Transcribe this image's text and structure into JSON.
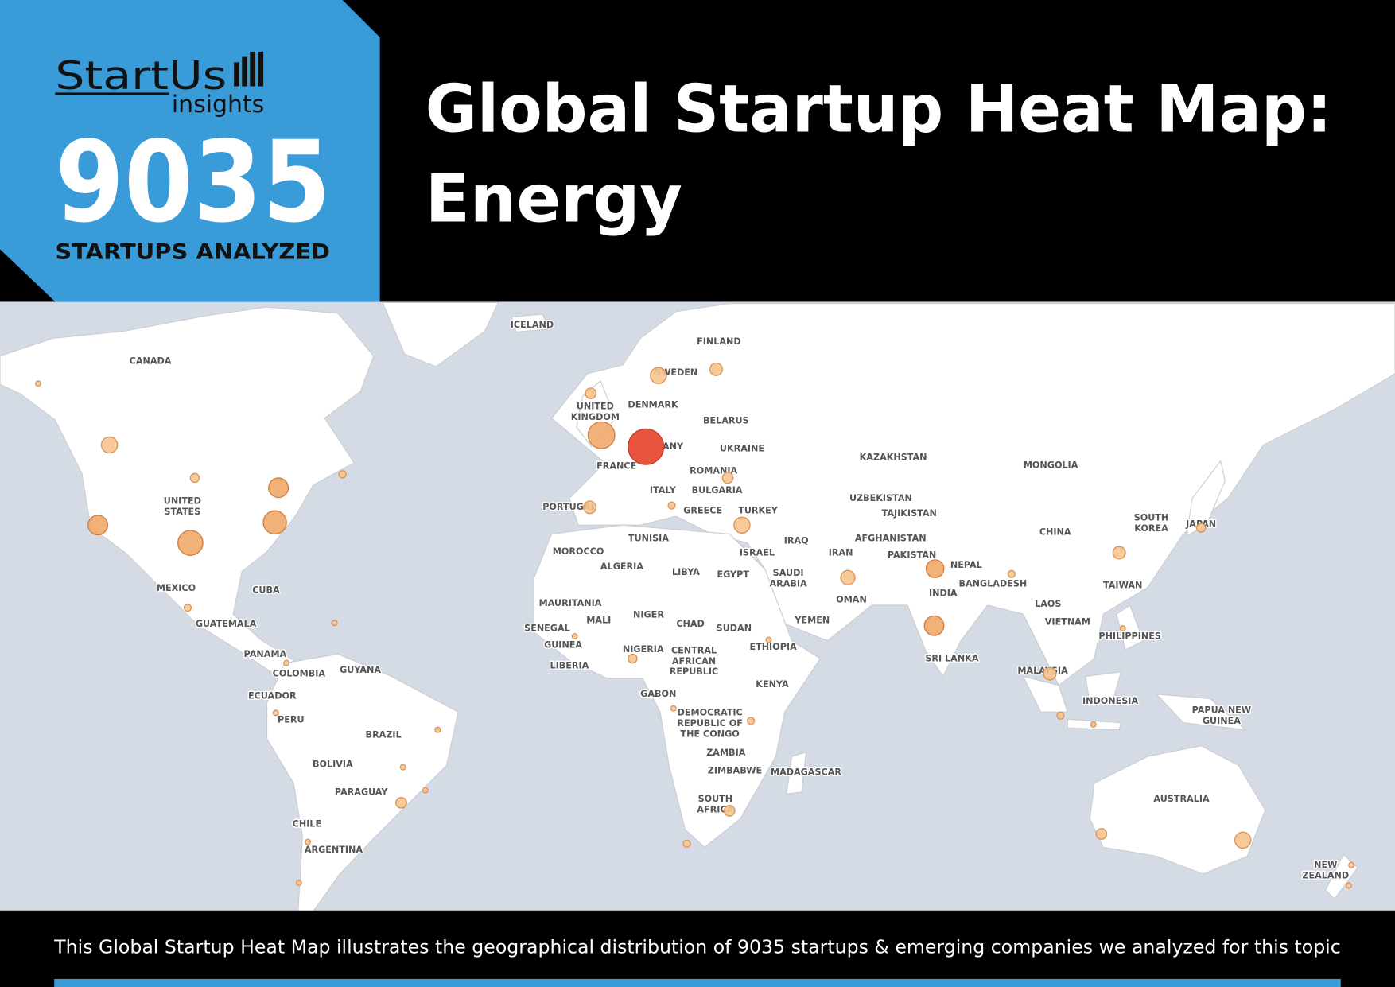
{
  "header": {
    "brand": "StartUs",
    "brand_sub": "insights",
    "count": 9035,
    "count_caption": "STARTUPS ANALYZED",
    "title_lines": [
      "Global Startup Heat Map:",
      "Energy"
    ]
  },
  "map": {
    "labels": [
      [
        "ICELAND"
      ],
      [
        "CANADA"
      ],
      [
        "FINLAND"
      ],
      [
        "SWEDEN"
      ],
      [
        "UNITED",
        "KINGDOM"
      ],
      [
        "DENMARK"
      ],
      [
        "BELARUS"
      ],
      [
        "GERMANY"
      ],
      [
        "UKRAINE"
      ],
      [
        "FRANCE"
      ],
      [
        "ROMANIA"
      ],
      [
        "KAZAKHSTAN"
      ],
      [
        "MONGOLIA"
      ],
      [
        "UNITED",
        "STATES"
      ],
      [
        "ITALY"
      ],
      [
        "BULGARIA"
      ],
      [
        "UZBEKISTAN"
      ],
      [
        "TAJIKISTAN"
      ],
      [
        "PORTUGAL"
      ],
      [
        "GREECE"
      ],
      [
        "TURKEY"
      ],
      [
        "SOUTH",
        "KOREA"
      ],
      [
        "JAPAN"
      ],
      [
        "CHINA"
      ],
      [
        "TUNISIA"
      ],
      [
        "AFGHANISTAN"
      ],
      [
        "IRAQ"
      ],
      [
        "MOROCCO"
      ],
      [
        "ISRAEL"
      ],
      [
        "IRAN"
      ],
      [
        "PAKISTAN"
      ],
      [
        "ALGERIA"
      ],
      [
        "LIBYA"
      ],
      [
        "EGYPT"
      ],
      [
        "SAUDI",
        "ARABIA"
      ],
      [
        "NEPAL"
      ],
      [
        "BANGLADESH"
      ],
      [
        "TAIWAN"
      ],
      [
        "MEXICO"
      ],
      [
        "CUBA"
      ],
      [
        "INDIA"
      ],
      [
        "OMAN"
      ],
      [
        "MAURITANIA"
      ],
      [
        "LAOS"
      ],
      [
        "MALI"
      ],
      [
        "NIGER"
      ],
      [
        "CHAD"
      ],
      [
        "SUDAN"
      ],
      [
        "YEMEN"
      ],
      [
        "VIETNAM"
      ],
      [
        "GUATEMALA"
      ],
      [
        "SENEGAL"
      ],
      [
        "PHILIPPINES"
      ],
      [
        "GUINEA"
      ],
      [
        "NIGERIA"
      ],
      [
        "ETHIOPIA"
      ],
      [
        "CENTRAL",
        "AFRICAN",
        "REPUBLIC"
      ],
      [
        "PANAMA"
      ],
      [
        "LIBERIA"
      ],
      [
        "COLOMBIA"
      ],
      [
        "GUYANA"
      ],
      [
        "SRI LANKA"
      ],
      [
        "MALAYSIA"
      ],
      [
        "KENYA"
      ],
      [
        "GABON"
      ],
      [
        "ECUADOR"
      ],
      [
        "INDONESIA"
      ],
      [
        "DEMOCRATIC",
        "REPUBLIC OF",
        "THE CONGO"
      ],
      [
        "PAPUA NEW",
        "GUINEA"
      ],
      [
        "PERU"
      ],
      [
        "BRAZIL"
      ],
      [
        "ZAMBIA"
      ],
      [
        "BOLIVIA"
      ],
      [
        "ZIMBABWE"
      ],
      [
        "MADAGASCAR"
      ],
      [
        "PARAGUAY"
      ],
      [
        "SOUTH",
        "AFRICA"
      ],
      [
        "AUSTRALIA"
      ],
      [
        "CHILE"
      ],
      [
        "ARGENTINA"
      ],
      [
        "NEW",
        "ZEALAND"
      ]
    ]
  },
  "footer": {
    "text": "This Global Startup Heat Map illustrates the geographical distribution of 9035 startups & emerging companies we analyzed for this topic"
  }
}
